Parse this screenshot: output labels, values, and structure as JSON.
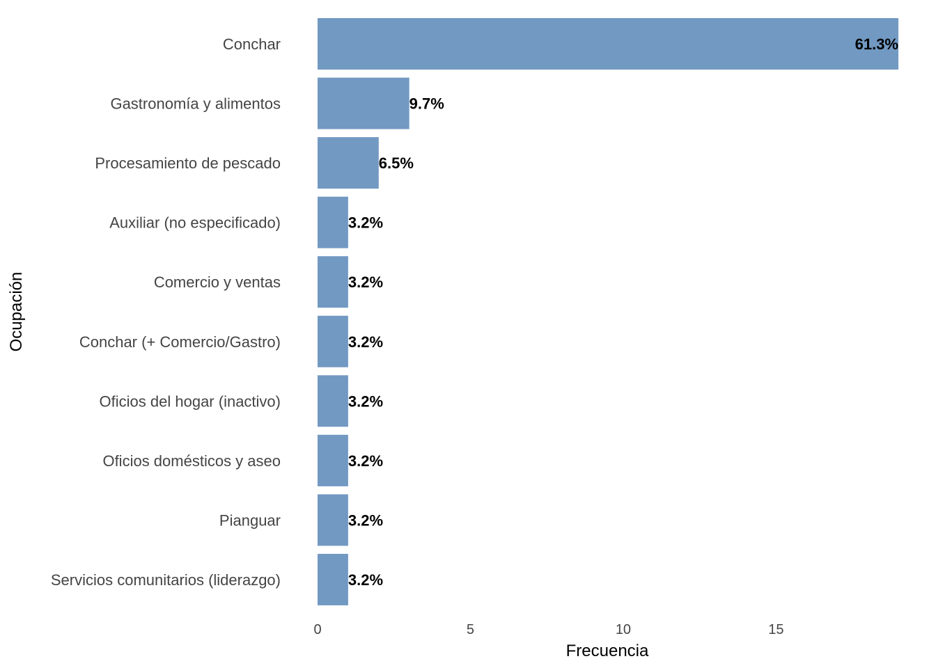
{
  "chart_data": {
    "type": "bar",
    "orientation": "horizontal",
    "title": "",
    "xlabel": "Frecuencia",
    "ylabel": "Ocupación",
    "xlim": [
      0,
      19
    ],
    "xticks": [
      0,
      5,
      10,
      15
    ],
    "grid": false,
    "bar_color": "#7299C2",
    "categories": [
      "Conchar",
      "Gastronomía y alimentos",
      "Procesamiento de pescado",
      "Auxiliar (no especificado)",
      "Comercio y ventas",
      "Conchar (+ Comercio/Gastro)",
      "Oficios del hogar (inactivo)",
      "Oficios domésticos y aseo",
      "Pianguar",
      "Servicios comunitarios (liderazgo)"
    ],
    "values": [
      19,
      3,
      2,
      1,
      1,
      1,
      1,
      1,
      1,
      1
    ],
    "data_labels": [
      "61.3%",
      "9.7%",
      "6.5%",
      "3.2%",
      "3.2%",
      "3.2%",
      "3.2%",
      "3.2%",
      "3.2%",
      "3.2%"
    ]
  }
}
